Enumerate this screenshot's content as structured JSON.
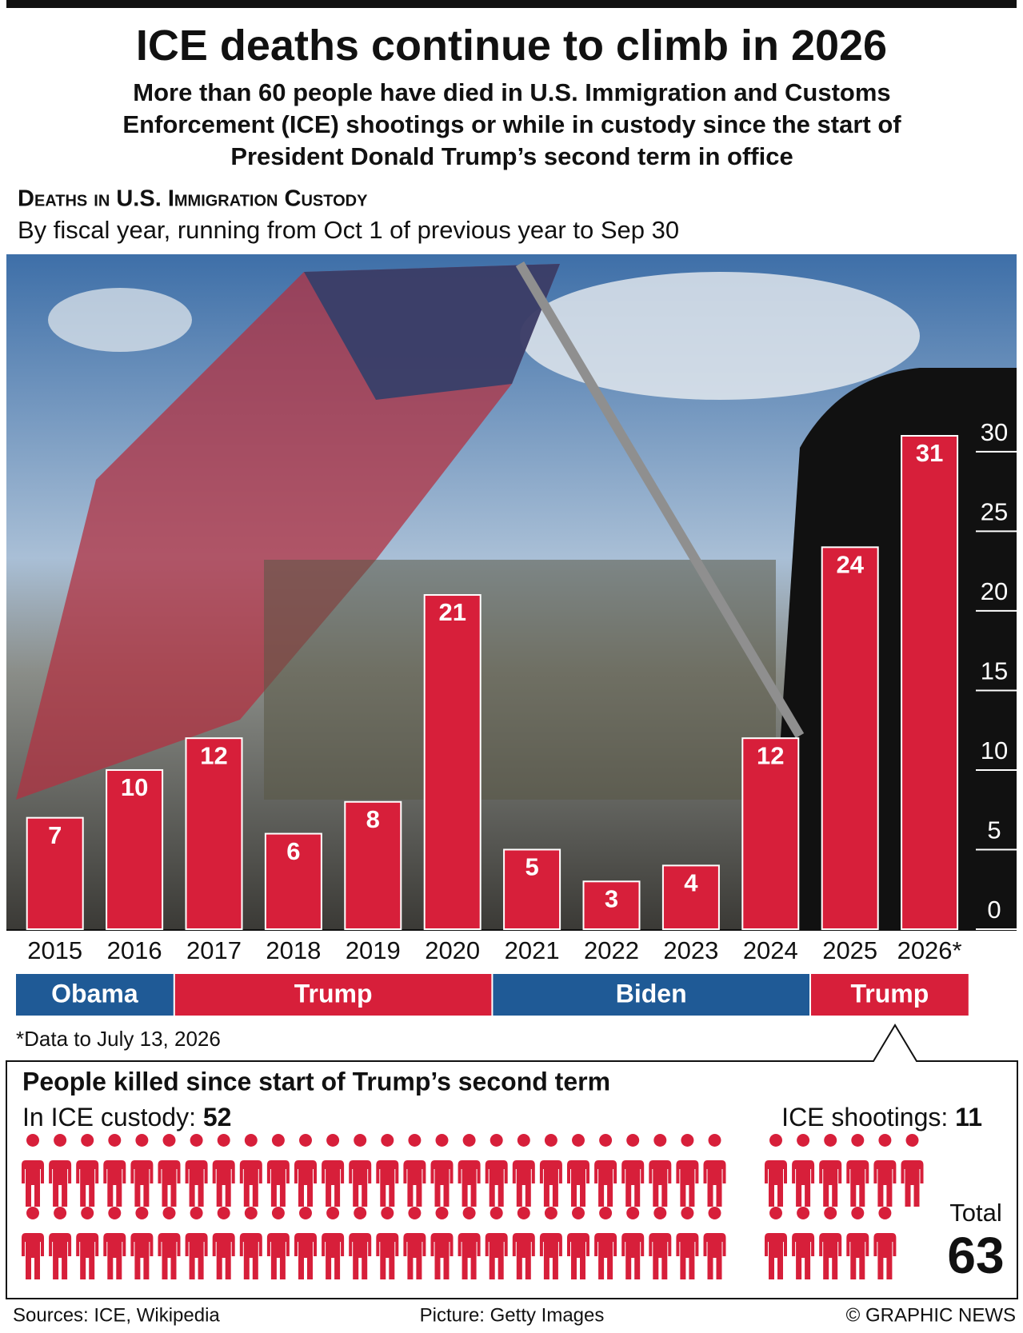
{
  "chart_data": {
    "type": "bar",
    "title": "ICE deaths continue to climb in 2026",
    "subtitle": "More than 60 people have died in U.S. Immigration and Customs Enforcement (ICE) shootings or while in custody since the start of President Donald Trump’s second term in office",
    "chart_title": "Deaths in U.S. Immigration Custody",
    "chart_subtitle": "By fiscal year, running from Oct 1 of previous year to Sep 30",
    "categories": [
      "2015",
      "2016",
      "2017",
      "2018",
      "2019",
      "2020",
      "2021",
      "2022",
      "2023",
      "2024",
      "2025",
      "2026*"
    ],
    "values": [
      7,
      10,
      12,
      6,
      8,
      21,
      5,
      3,
      4,
      12,
      24,
      31
    ],
    "color": "#d71f3a",
    "ylim": [
      0,
      31
    ],
    "yticks": [
      0,
      5,
      10,
      15,
      20,
      25,
      30
    ],
    "administrations": [
      {
        "name": "Obama",
        "color": "#1f5a96",
        "first": "2015",
        "last": "2016"
      },
      {
        "name": "Trump",
        "color": "#d71f3a",
        "first": "2017",
        "last": "2020"
      },
      {
        "name": "Biden",
        "color": "#1f5a96",
        "first": "2021",
        "last": "2024"
      },
      {
        "name": "Trump",
        "color": "#d71f3a",
        "first": "2025",
        "last": "2026*"
      }
    ],
    "footnote": "*Data to July 13, 2026",
    "summary": {
      "title": "People killed since start of Trump’s second term",
      "custody_label": "In ICE custody:",
      "custody": 52,
      "shootings_label": "ICE shootings:",
      "shootings": 11,
      "total_label": "Total",
      "total": 63
    },
    "sources": "Sources: ICE, Wikipedia",
    "picture": "Picture: Getty Images",
    "copyright": "© GRAPHIC NEWS"
  }
}
